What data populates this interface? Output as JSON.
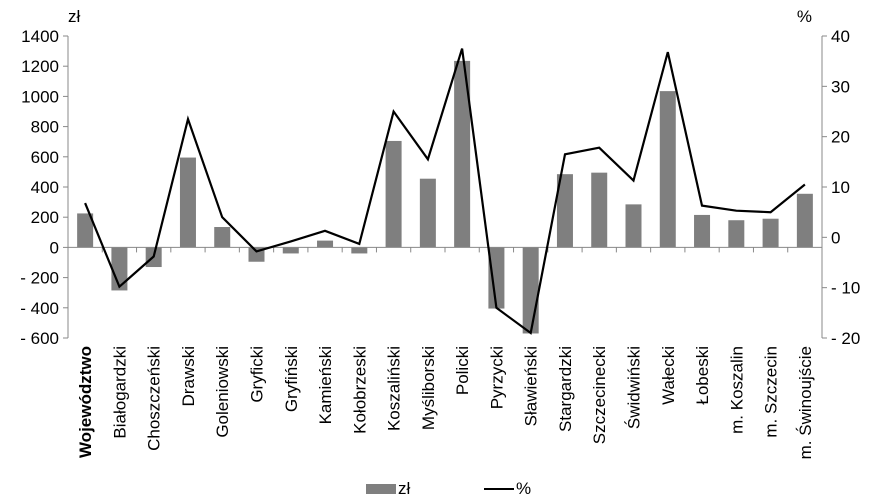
{
  "chart_data": {
    "type": "bar+line",
    "categories": [
      "Województwo",
      "Białogardzki",
      "Choszczeński",
      "Drawski",
      "Goleniowski",
      "Gryficki",
      "Gryfiński",
      "Kamieński",
      "Kołobrzeski",
      "Koszaliński",
      "Myśliborski",
      "Policki",
      "Pyrzycki",
      "Sławieński",
      "Stargardzki",
      "Szczecinecki",
      "Świdwiński",
      "Wałecki",
      "Łobeski",
      "m. Koszalin",
      "m. Szczecin",
      "m. Świnoujście"
    ],
    "bold_category_index": 0,
    "series": [
      {
        "name": "zł",
        "type": "bar",
        "axis": "left",
        "color": "#7f7f7f",
        "values": [
          225,
          -285,
          -130,
          595,
          135,
          -95,
          -40,
          45,
          -40,
          705,
          455,
          1235,
          -405,
          -570,
          485,
          495,
          285,
          1035,
          215,
          180,
          190,
          355
        ]
      },
      {
        "name": "%",
        "type": "line",
        "axis": "right",
        "color": "#000000",
        "values": [
          6.8,
          -9.8,
          -3.8,
          23.5,
          4.0,
          -2.8,
          -0.8,
          1.3,
          -1.3,
          25.0,
          15.5,
          37.5,
          -14.0,
          -19.0,
          16.5,
          17.8,
          11.3,
          36.8,
          6.3,
          5.3,
          5.0,
          10.5
        ]
      }
    ],
    "left_axis": {
      "unit": "zł",
      "min": -600,
      "max": 1400,
      "ticks": [
        -600,
        -400,
        -200,
        0,
        200,
        400,
        600,
        800,
        1000,
        1200,
        1400
      ],
      "tick_labels": [
        "- 600",
        "- 400",
        "- 200",
        "0",
        "200",
        "400",
        "600",
        "800",
        "1000",
        "1200",
        "1400"
      ]
    },
    "right_axis": {
      "unit": "%",
      "min": -20,
      "max": 40,
      "ticks": [
        -20,
        -10,
        0,
        10,
        20,
        30,
        40
      ],
      "tick_labels": [
        "- 20",
        "- 10",
        "0",
        "10",
        "20",
        "30",
        "40"
      ]
    },
    "grid": false,
    "legend": {
      "placement": "bottom",
      "items": [
        "zł",
        "%"
      ]
    }
  }
}
